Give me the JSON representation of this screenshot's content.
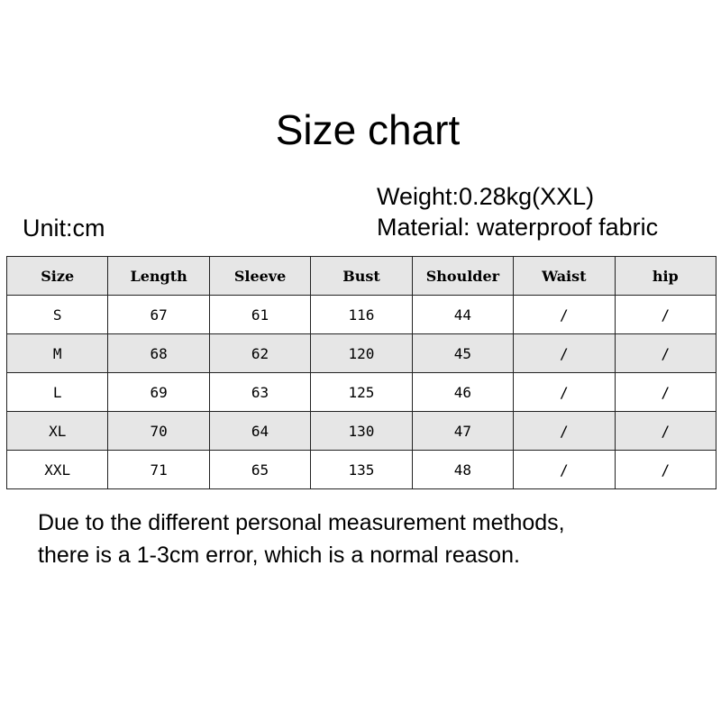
{
  "title": "Size chart",
  "weight": "Weight:0.28kg(XXL)",
  "material": "Material: waterproof fabric",
  "unit": "Unit:cm",
  "table": {
    "headers": [
      "Size",
      "Length",
      "Sleeve",
      "Bust",
      "Shoulder",
      "Waist",
      "hip"
    ],
    "rows": [
      [
        "S",
        "67",
        "61",
        "116",
        "44",
        "/",
        "/"
      ],
      [
        "M",
        "68",
        "62",
        "120",
        "45",
        "/",
        "/"
      ],
      [
        "L",
        "69",
        "63",
        "125",
        "46",
        "/",
        "/"
      ],
      [
        "XL",
        "70",
        "64",
        "130",
        "47",
        "/",
        "/"
      ],
      [
        "XXL",
        "71",
        "65",
        "135",
        "48",
        "/",
        "/"
      ]
    ]
  },
  "note": [
    "Due to the different personal measurement methods,",
    "there is a 1-3cm error, which is a normal reason."
  ]
}
